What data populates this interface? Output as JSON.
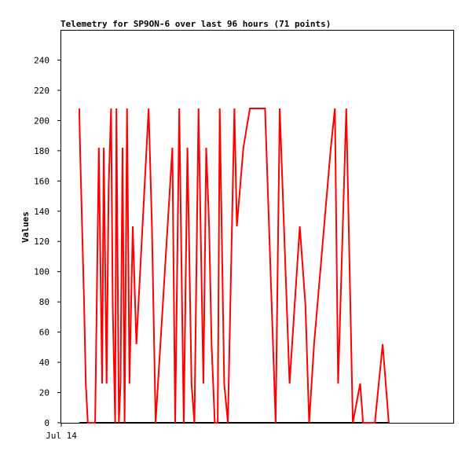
{
  "chart_data": {
    "type": "line",
    "title": "Telemetry for SP9ON-6 over last 96 hours (71 points)",
    "xlabel": "",
    "ylabel": "Values",
    "ylim": [
      0,
      260
    ],
    "yticks": [
      0,
      20,
      40,
      60,
      80,
      100,
      120,
      140,
      160,
      180,
      200,
      220,
      240
    ],
    "xtick_labels": [
      "Jul 14"
    ],
    "grid": false,
    "legend": "none",
    "colors": {
      "series": "#ff0000",
      "baseline": "#000000",
      "axis": "#000000"
    },
    "series": [
      {
        "x": [
          4.4,
          4.6,
          5.1,
          5.6,
          6.0,
          6.5,
          6.9,
          7.4,
          7.8,
          8.3,
          9.2,
          10.0,
          10.4,
          11.1,
          11.6,
          12.2,
          12.6,
          13.2,
          13.5,
          14.1,
          14.5,
          15.0,
          15.5,
          16.1,
          16.7,
          17.5,
          18.4,
          21.4,
          22.2,
          23.1,
          27.2,
          27.9,
          28.9,
          30.0,
          30.9,
          31.9,
          32.6,
          33.6,
          34.8,
          35.5,
          36.2,
          36.8,
          37.6,
          38.3,
          38.8,
          39.9,
          40.8,
          41.4,
          42.4,
          43.0,
          44.6,
          46.2,
          49.9,
          52.5,
          53.5,
          55.9,
          58.4,
          59.8,
          60.7,
          61.9,
          66.0,
          67.0,
          67.8,
          69.8,
          71.4,
          73.2,
          73.9,
          75.9,
          76.8,
          78.7,
          80.2
        ],
        "y": [
          208,
          182,
          130,
          78,
          26,
          0,
          0,
          0,
          0,
          0,
          182,
          26,
          182,
          26,
          156,
          208,
          78,
          0,
          208,
          0,
          26,
          182,
          0,
          208,
          26,
          130,
          52,
          208,
          130,
          0,
          182,
          0,
          208,
          0,
          182,
          26,
          0,
          208,
          26,
          182,
          130,
          52,
          0,
          0,
          208,
          26,
          0,
          78,
          208,
          130,
          182,
          208,
          208,
          0,
          208,
          26,
          130,
          78,
          0,
          52,
          182,
          208,
          26,
          208,
          0,
          26,
          0,
          0,
          0,
          52,
          0
        ]
      }
    ]
  }
}
